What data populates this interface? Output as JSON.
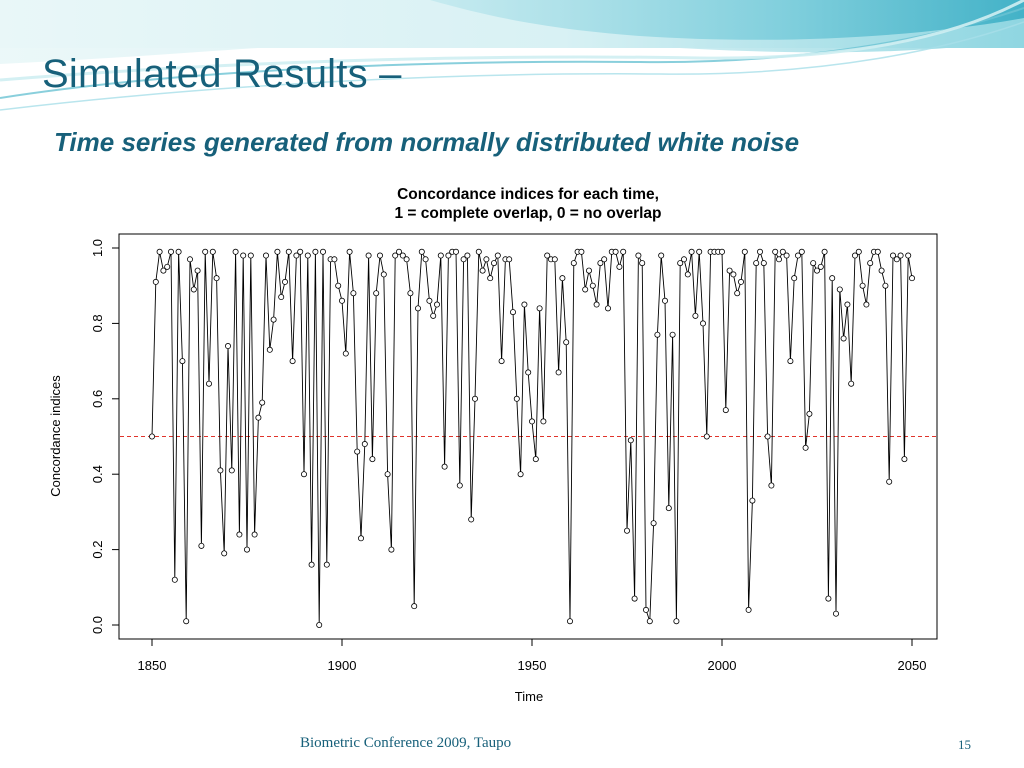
{
  "slide": {
    "title": "Simulated Results –",
    "subtitle": "Time series generated from normally distributed white noise",
    "footer": "Biometric Conference 2009, Taupo",
    "page_number": "15"
  },
  "colors": {
    "title": "#17607a",
    "reference_line": "#e0342c",
    "banner_light": "#dff4f6",
    "banner_mid": "#7fd0dc",
    "banner_dark": "#2ba7c0"
  },
  "chart_data": {
    "type": "line",
    "title_lines": [
      "Concordance indices for each time,",
      "1 = complete overlap, 0 = no overlap"
    ],
    "xlabel": "Time",
    "ylabel": "Concordance indices",
    "xlim": [
      1850,
      2050
    ],
    "ylim": [
      0,
      1
    ],
    "x_ticks": [
      "1850",
      "1900",
      "1950",
      "2000",
      "2050"
    ],
    "y_ticks": [
      "0.0",
      "0.2",
      "0.4",
      "0.6",
      "0.8",
      "1.0"
    ],
    "reference_line": {
      "y": 0.5,
      "style": "dashed"
    },
    "grid": false,
    "series": [
      {
        "marker": "open-circle",
        "x_start": 1850,
        "x_step": 1,
        "values": [
          0.5,
          0.91,
          0.99,
          0.94,
          0.95,
          0.99,
          0.12,
          0.99,
          0.7,
          0.01,
          0.97,
          0.89,
          0.94,
          0.21,
          0.99,
          0.64,
          0.99,
          0.92,
          0.41,
          0.19,
          0.74,
          0.41,
          0.99,
          0.24,
          0.98,
          0.2,
          0.98,
          0.24,
          0.55,
          0.59,
          0.98,
          0.73,
          0.81,
          0.99,
          0.87,
          0.91,
          0.99,
          0.7,
          0.98,
          0.99,
          0.4,
          0.98,
          0.16,
          0.99,
          0.0,
          0.99,
          0.16,
          0.97,
          0.97,
          0.9,
          0.86,
          0.72,
          0.99,
          0.88,
          0.46,
          0.23,
          0.48,
          0.98,
          0.44,
          0.88,
          0.98,
          0.93,
          0.4,
          0.2,
          0.98,
          0.99,
          0.98,
          0.97,
          0.88,
          0.05,
          0.84,
          0.99,
          0.97,
          0.86,
          0.82,
          0.85,
          0.98,
          0.42,
          0.98,
          0.99,
          0.99,
          0.37,
          0.97,
          0.98,
          0.28,
          0.6,
          0.99,
          0.94,
          0.97,
          0.92,
          0.96,
          0.98,
          0.7,
          0.97,
          0.97,
          0.83,
          0.6,
          0.4,
          0.85,
          0.67,
          0.54,
          0.44,
          0.84,
          0.54,
          0.98,
          0.97,
          0.97,
          0.67,
          0.92,
          0.75,
          0.01,
          0.96,
          0.99,
          0.99,
          0.89,
          0.94,
          0.9,
          0.85,
          0.96,
          0.97,
          0.84,
          0.99,
          0.99,
          0.95,
          0.99,
          0.25,
          0.49,
          0.07,
          0.98,
          0.96,
          0.04,
          0.01,
          0.27,
          0.77,
          0.98,
          0.86,
          0.31,
          0.77,
          0.01,
          0.96,
          0.97,
          0.93,
          0.99,
          0.82,
          0.99,
          0.8,
          0.5,
          0.99,
          0.99,
          0.99,
          0.99,
          0.57,
          0.94,
          0.93,
          0.88,
          0.91,
          0.99,
          0.04,
          0.33,
          0.96,
          0.99,
          0.96,
          0.5,
          0.37,
          0.99,
          0.97,
          0.99,
          0.98,
          0.7,
          0.92,
          0.98,
          0.99,
          0.47,
          0.56,
          0.96,
          0.94,
          0.95,
          0.99,
          0.07,
          0.92,
          0.03,
          0.89,
          0.76,
          0.85,
          0.64,
          0.98,
          0.99,
          0.9,
          0.85,
          0.96,
          0.99,
          0.99,
          0.94,
          0.9,
          0.38,
          0.98,
          0.97,
          0.98,
          0.44,
          0.98,
          0.92
        ]
      }
    ]
  }
}
